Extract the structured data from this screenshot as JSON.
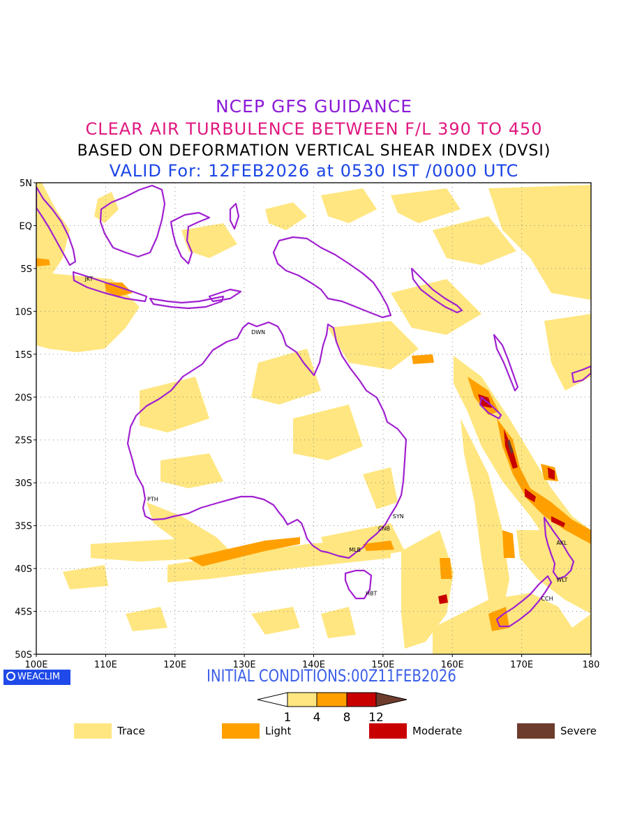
{
  "titles": {
    "line1": "NCEP GFS GUIDANCE",
    "line2": "CLEAR AIR TURBULENCE BETWEEN F/L 390 TO 450",
    "line3": "BASED ON DEFORMATION VERTICAL SHEAR INDEX (DVSI)",
    "line4": "VALID For: 12FEB2026 at 0530 IST /0000 UTC"
  },
  "map": {
    "lat_labels": [
      "5N",
      "EQ",
      "5S",
      "10S",
      "15S",
      "20S",
      "25S",
      "30S",
      "35S",
      "40S",
      "45S",
      "50S"
    ],
    "lon_labels": [
      "100E",
      "110E",
      "120E",
      "130E",
      "140E",
      "150E",
      "160E",
      "170E",
      "180"
    ],
    "stations": [
      {
        "code": "JKT",
        "lon": 106.8,
        "lat": -6.2
      },
      {
        "code": "DWN",
        "lon": 130.8,
        "lat": -12.4
      },
      {
        "code": "PTH",
        "lon": 115.8,
        "lat": -31.9
      },
      {
        "code": "SYN",
        "lon": 151.2,
        "lat": -33.9
      },
      {
        "code": "CNB",
        "lon": 149.1,
        "lat": -35.3
      },
      {
        "code": "MLB",
        "lon": 144.9,
        "lat": -37.8
      },
      {
        "code": "HBT",
        "lon": 147.3,
        "lat": -42.9
      },
      {
        "code": "AKL",
        "lon": 174.8,
        "lat": -37.0
      },
      {
        "code": "WLT",
        "lon": 174.8,
        "lat": -41.3
      },
      {
        "code": "CCH",
        "lon": 172.6,
        "lat": -43.5
      }
    ],
    "colors": {
      "trace": "#ffe680",
      "light": "#ffa000",
      "moderate": "#c80000",
      "severe": "#6e3c2d",
      "coastline": "#a020d0"
    }
  },
  "badge": {
    "text": "WEACLIM"
  },
  "initial_conditions": "INITIAL CONDITIONS:00Z11FEB2026",
  "colorbar": {
    "thresholds": [
      "1",
      "4",
      "8",
      "12"
    ]
  },
  "legend": [
    {
      "label": "Trace",
      "color": "#ffe680"
    },
    {
      "label": "Light",
      "color": "#ffa000"
    },
    {
      "label": "Moderate",
      "color": "#c80000"
    },
    {
      "label": "Severe",
      "color": "#6e3c2d"
    }
  ]
}
